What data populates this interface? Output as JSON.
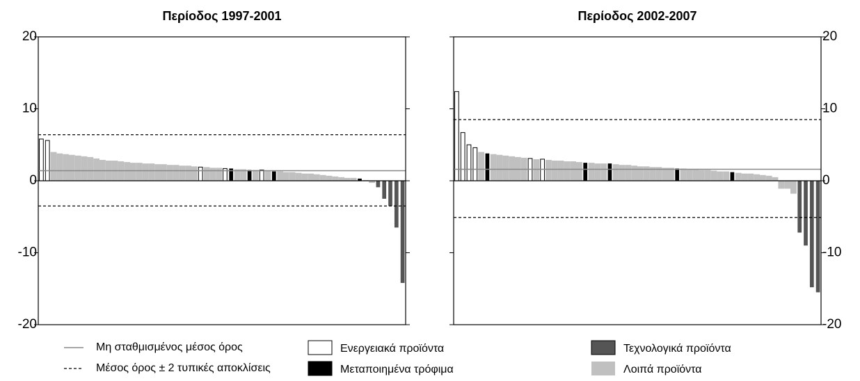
{
  "chart_data": [
    {
      "type": "bar",
      "title": "Περίοδος 1997-2001",
      "ylim": [
        -20,
        20
      ],
      "yticks": [
        -20,
        -10,
        0,
        10,
        20
      ],
      "y_axis_side": "left",
      "mean": 1.4,
      "mean_name": "Μη σταθμισμένος μέσος όρος",
      "upper": 6.4,
      "lower": -3.5,
      "band_name": "Μέσος όρος ± 2 τυπικές αποκλίσεις",
      "series": [
        {
          "name": "Ενεργειακά προϊόντα",
          "color": "#ffffff",
          "values": [
            5.8,
            5.6,
            null,
            null,
            null,
            null,
            null,
            null,
            null,
            null,
            null,
            null,
            null,
            null,
            null,
            null,
            null,
            null,
            null,
            null,
            null,
            null,
            null,
            null,
            null,
            null,
            1.9,
            null,
            null,
            null,
            1.7,
            null,
            null,
            null,
            null,
            null,
            1.5,
            null,
            null,
            null,
            null,
            null,
            null,
            null,
            null,
            null,
            null,
            null,
            null,
            null,
            null,
            null,
            null,
            null,
            null,
            null,
            null,
            null,
            null,
            null
          ]
        },
        {
          "name": "Μεταποιημένα τρόφιμα",
          "color": "#000000",
          "values": [
            null,
            null,
            null,
            null,
            null,
            null,
            null,
            null,
            null,
            null,
            null,
            null,
            null,
            null,
            null,
            null,
            null,
            null,
            null,
            null,
            null,
            null,
            null,
            null,
            null,
            null,
            null,
            null,
            null,
            null,
            null,
            1.7,
            null,
            null,
            1.5,
            null,
            null,
            null,
            1.3,
            null,
            null,
            null,
            null,
            null,
            null,
            null,
            null,
            null,
            null,
            null,
            null,
            null,
            0.3,
            null,
            null,
            null,
            null,
            null,
            null,
            null
          ]
        },
        {
          "name": "Τεχνολογικά προϊόντα",
          "color": "#555555",
          "values": [
            null,
            null,
            null,
            null,
            null,
            null,
            null,
            null,
            null,
            null,
            null,
            null,
            null,
            null,
            null,
            null,
            null,
            null,
            null,
            null,
            null,
            null,
            null,
            null,
            null,
            null,
            null,
            null,
            null,
            null,
            null,
            null,
            null,
            null,
            null,
            null,
            null,
            null,
            null,
            null,
            null,
            null,
            null,
            null,
            null,
            null,
            null,
            null,
            null,
            null,
            null,
            null,
            null,
            null,
            null,
            -0.9,
            -2.5,
            -3.5,
            -6.5,
            -14.2
          ]
        },
        {
          "name": "Λοιπά προϊόντα",
          "color": "#c0c0c0",
          "values": [
            null,
            null,
            4.0,
            3.8,
            3.7,
            3.6,
            3.5,
            3.4,
            3.3,
            3.1,
            2.9,
            2.8,
            2.8,
            2.7,
            2.6,
            2.5,
            2.5,
            2.4,
            2.4,
            2.3,
            2.3,
            2.2,
            2.2,
            2.1,
            2.1,
            2.0,
            null,
            1.9,
            1.8,
            1.8,
            null,
            null,
            1.6,
            1.6,
            null,
            1.5,
            null,
            1.4,
            null,
            1.3,
            1.2,
            1.2,
            1.1,
            1.0,
            1.0,
            0.9,
            0.8,
            0.7,
            0.6,
            0.5,
            0.4,
            0.4,
            null,
            0.1,
            -0.3,
            null,
            null,
            null,
            null,
            null
          ]
        }
      ]
    },
    {
      "type": "bar",
      "title": "Περίοδος 2002-2007",
      "ylim": [
        -20,
        20
      ],
      "yticks": [
        -20,
        -10,
        0,
        10,
        20
      ],
      "y_axis_side": "right",
      "mean": 1.6,
      "upper": 8.5,
      "lower": -5.1,
      "series": [
        {
          "color": "#ffffff",
          "values": [
            12.4,
            6.7,
            5.0,
            4.6,
            null,
            null,
            null,
            null,
            null,
            null,
            null,
            null,
            3.1,
            null,
            3.0,
            null,
            null,
            null,
            null,
            null,
            null,
            null,
            null,
            null,
            null,
            null,
            null,
            null,
            null,
            null,
            null,
            null,
            null,
            null,
            null,
            null,
            null,
            null,
            null,
            null,
            null,
            null,
            null,
            null,
            null,
            null,
            null,
            null,
            null,
            null,
            null,
            null,
            null,
            null,
            null,
            null,
            null,
            null,
            null,
            null
          ]
        },
        {
          "color": "#000000",
          "values": [
            null,
            null,
            null,
            null,
            null,
            3.8,
            null,
            null,
            null,
            null,
            null,
            null,
            null,
            null,
            null,
            null,
            null,
            null,
            null,
            null,
            null,
            2.5,
            null,
            null,
            null,
            2.4,
            null,
            null,
            null,
            null,
            null,
            null,
            null,
            null,
            null,
            null,
            1.7,
            null,
            null,
            null,
            null,
            null,
            null,
            null,
            null,
            1.2,
            null,
            null,
            null,
            null,
            null,
            null,
            null,
            null,
            null,
            null,
            null,
            null,
            null,
            null
          ]
        },
        {
          "color": "#555555",
          "values": [
            null,
            null,
            null,
            null,
            null,
            null,
            null,
            null,
            null,
            null,
            null,
            null,
            null,
            null,
            null,
            null,
            null,
            null,
            null,
            null,
            null,
            null,
            null,
            null,
            null,
            null,
            null,
            null,
            null,
            null,
            null,
            null,
            null,
            null,
            null,
            null,
            null,
            null,
            null,
            null,
            null,
            null,
            null,
            null,
            null,
            null,
            null,
            null,
            null,
            null,
            null,
            null,
            null,
            null,
            null,
            null,
            -7.2,
            -9.0,
            -14.8,
            -15.5
          ]
        },
        {
          "color": "#c0c0c0",
          "values": [
            null,
            null,
            null,
            null,
            4.0,
            null,
            3.7,
            3.6,
            3.5,
            3.4,
            3.3,
            3.2,
            null,
            3.0,
            null,
            2.9,
            2.8,
            2.8,
            2.7,
            2.7,
            2.6,
            null,
            2.5,
            2.4,
            2.4,
            null,
            2.3,
            2.2,
            2.2,
            2.1,
            2.0,
            2.0,
            1.9,
            1.9,
            1.8,
            1.8,
            null,
            1.7,
            1.6,
            1.6,
            1.5,
            1.5,
            1.4,
            1.3,
            1.3,
            null,
            1.1,
            1.0,
            1.0,
            0.9,
            0.8,
            0.7,
            0.5,
            -1.1,
            -1.1,
            -1.8,
            null,
            null,
            null,
            null
          ]
        }
      ]
    }
  ]
}
